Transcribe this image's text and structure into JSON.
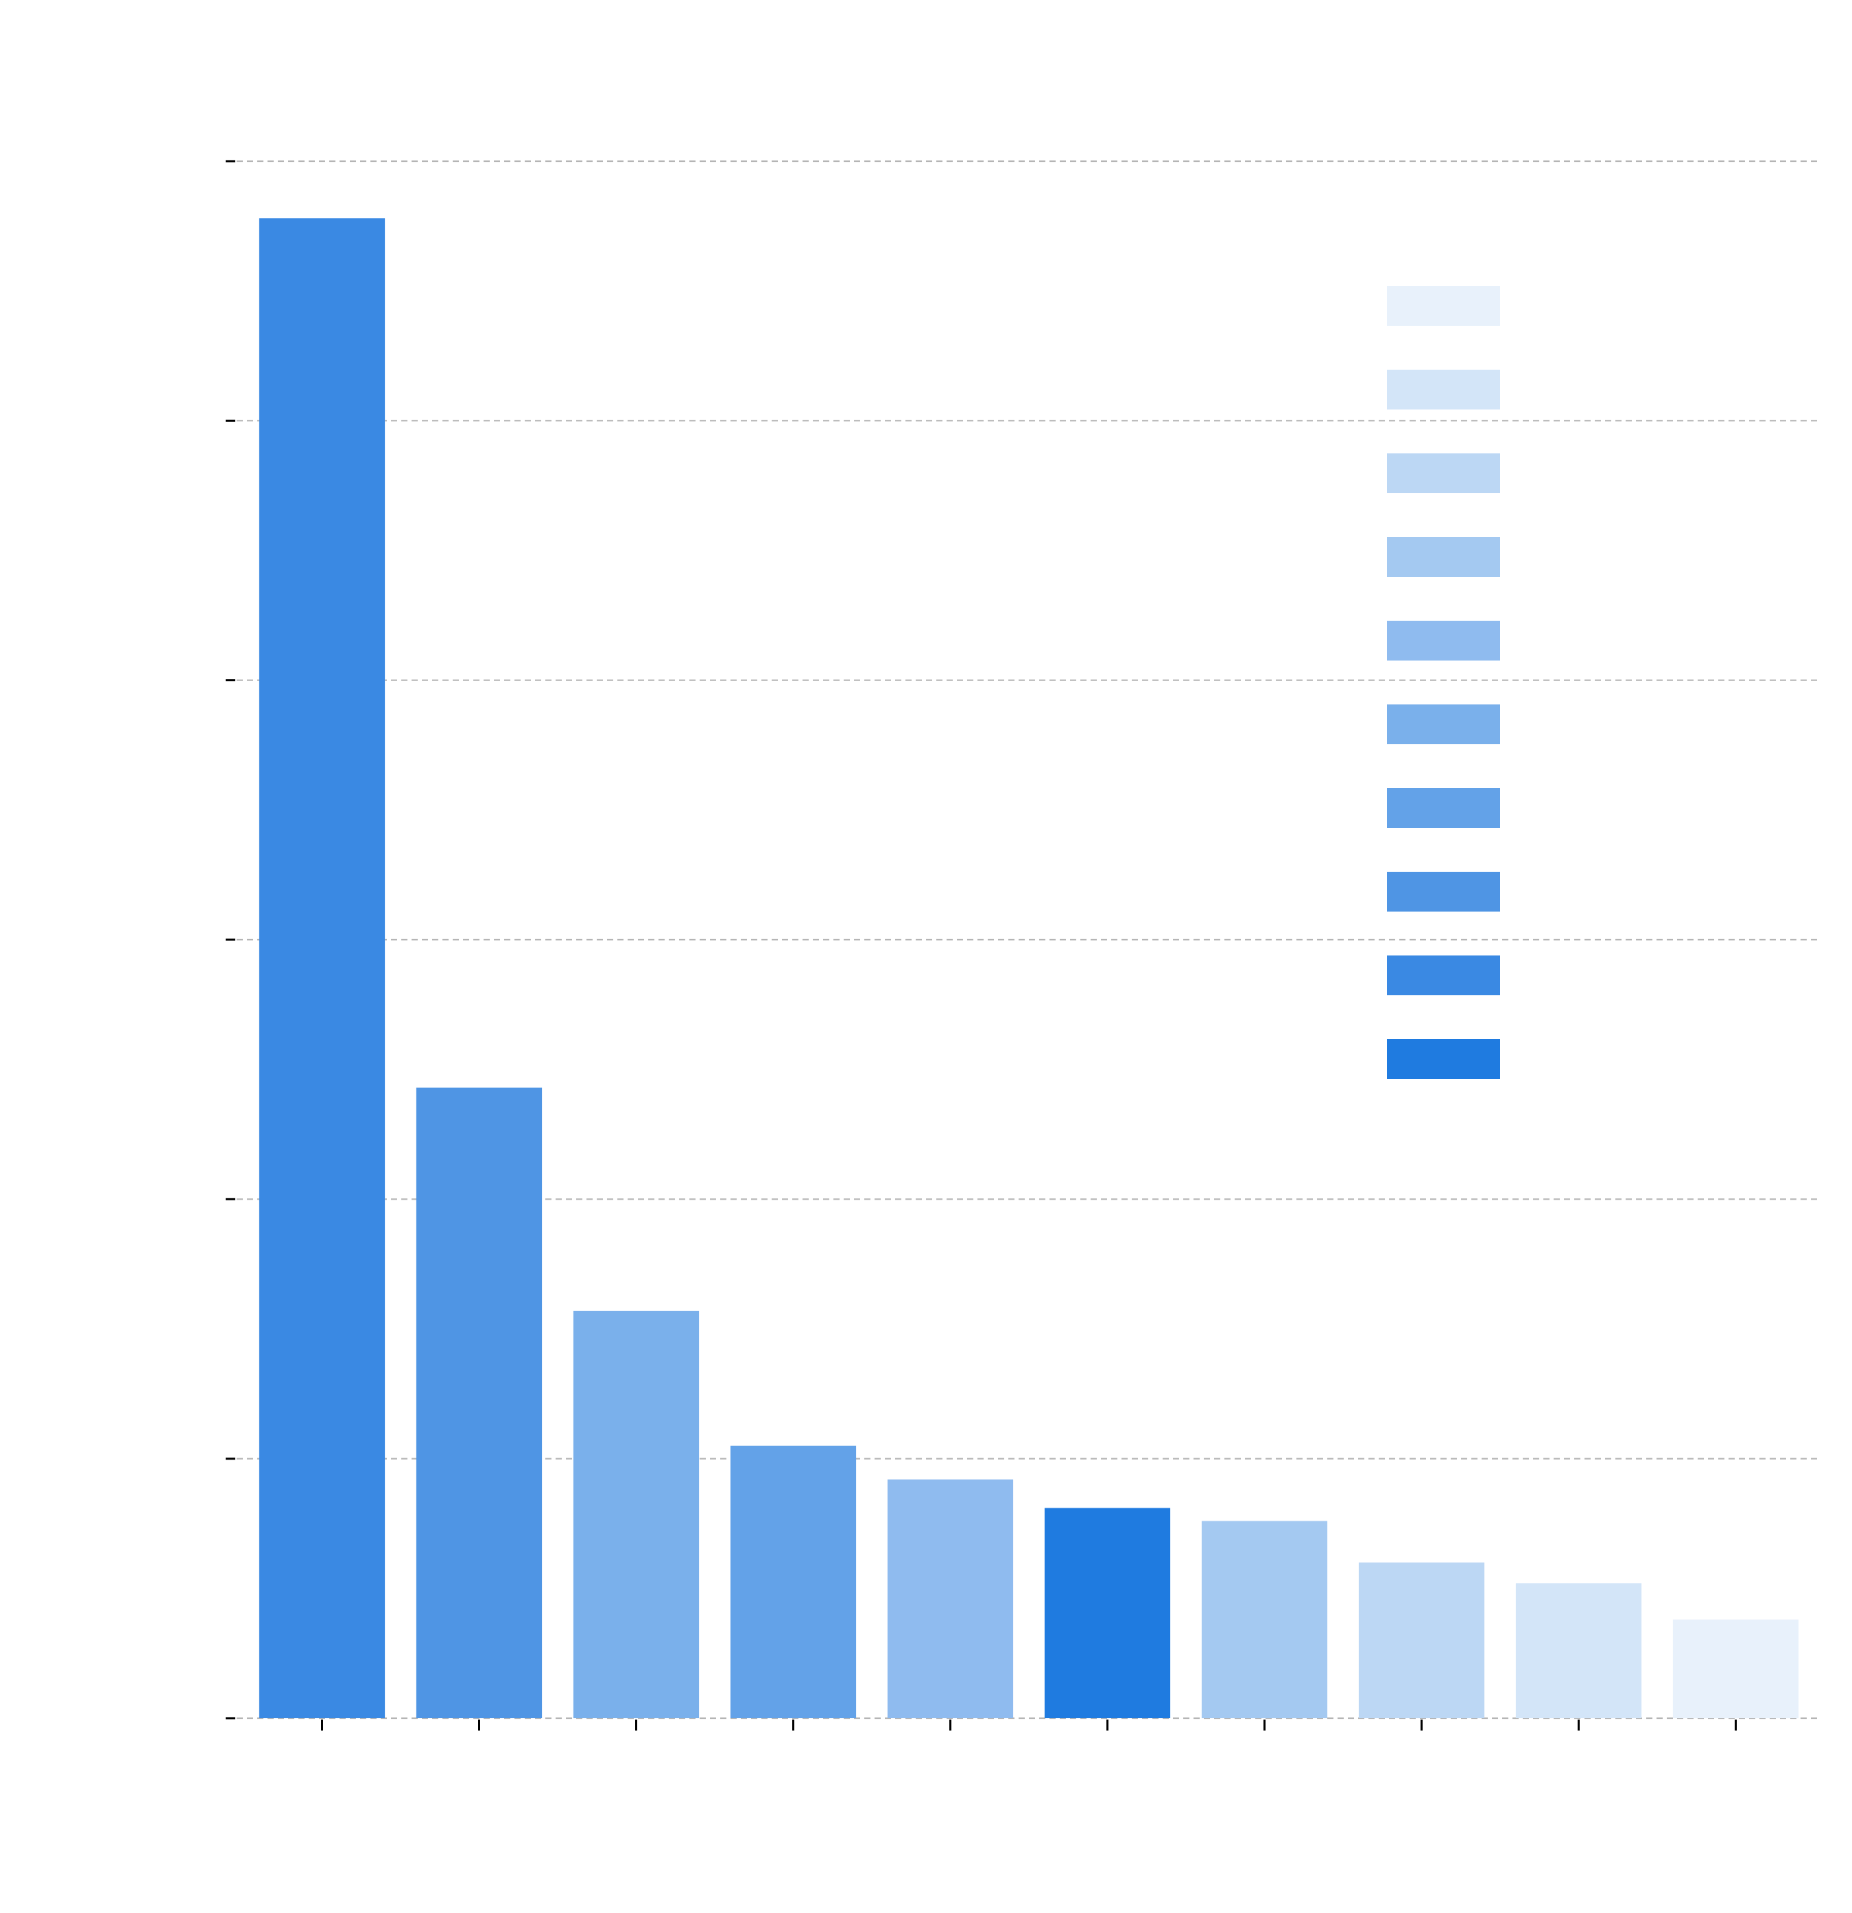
{
  "chart_data": {
    "type": "bar",
    "title": "",
    "xlabel": "",
    "ylabel": "",
    "categories": [
      "",
      "",
      "",
      "",
      "",
      "",
      "",
      "",
      "",
      ""
    ],
    "values": [
      5.78,
      2.43,
      1.57,
      1.05,
      0.92,
      0.81,
      0.76,
      0.6,
      0.52,
      0.38
    ],
    "ylim": [
      0,
      6
    ],
    "yticks": [
      0,
      1,
      2,
      3,
      4,
      5,
      6
    ],
    "ytick_labels": [
      "",
      "",
      "",
      "",
      "",
      "",
      ""
    ],
    "grid": true,
    "legend": {
      "placement": "top-right",
      "entries": [
        "",
        "",
        "",
        "",
        "",
        "",
        "",
        "",
        "",
        ""
      ]
    },
    "bar_colors": [
      "#3a89e3",
      "#4f95e4",
      "#7ab0eb",
      "#63a2e8",
      "#8fbbef",
      "#1f7be0",
      "#a4c9f1",
      "#bcd7f4",
      "#d3e5f8",
      "#e8f1fb"
    ],
    "legend_colors": [
      "#e8f1fb",
      "#d3e5f8",
      "#bcd7f4",
      "#a4c9f1",
      "#8fbbef",
      "#7ab0eb",
      "#63a2e8",
      "#4f95e4",
      "#3a89e3",
      "#1f7be0"
    ]
  }
}
